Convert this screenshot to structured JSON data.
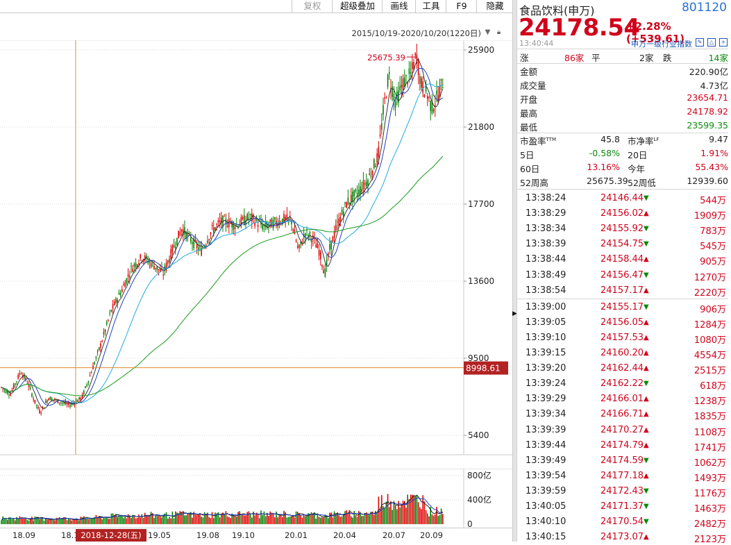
{
  "toolbar": {
    "buttons": [
      {
        "label": "复权",
        "disabled": true
      },
      {
        "label": "超级叠加"
      },
      {
        "label": "画线"
      },
      {
        "label": "工具"
      },
      {
        "label": "F9"
      },
      {
        "label": "隐藏"
      }
    ]
  },
  "range_label": "2015/10/19-2020/10/20(1220日)",
  "price_axis": [
    "25900",
    "21800",
    "17700",
    "13600",
    "9500",
    "5400"
  ],
  "cursor_price": "8998.61",
  "cursor_date": "2018-12-28(五)",
  "high_label": "25675.39",
  "volume_axis": [
    "800亿",
    "400亿",
    "0"
  ],
  "date_ticks": [
    "18.09",
    "18.1",
    "19.05",
    "19.08",
    "19.10",
    "20.01",
    "20.04",
    "20.07",
    "20.09"
  ],
  "chart_data": {
    "type": "candlestick",
    "date_range": [
      "2015/10/19",
      "2020/10/20"
    ],
    "ylim": [
      4000,
      26400
    ],
    "y_ticks": [
      25900,
      21800,
      17700,
      13600,
      9500,
      5400
    ],
    "max_marker": 25675.39,
    "crosshair": {
      "value": 8998.61,
      "date": "2018-12-28(五)"
    },
    "volume_ticks_yi": [
      800,
      400,
      0
    ]
  },
  "panel": {
    "name": "食品饮料(申万)",
    "code": "801120",
    "price": "24178.54",
    "change": "+2.28% (+539.61)",
    "time": "13:40:44",
    "index_link": "申万一级行业指数",
    "rise_label": "涨",
    "rise_count": "86家",
    "flat_label": "平",
    "flat_count": "2家",
    "fall_label": "跌",
    "fall_count": "14家",
    "stats": [
      {
        "label": "金额",
        "value": "220.90亿",
        "color": "#222222"
      },
      {
        "label": "成交量",
        "value": "4.73亿",
        "color": "#222222"
      },
      {
        "label": "开盘",
        "value": "23654.71",
        "color": "#d0021b"
      },
      {
        "label": "最高",
        "value": "24178.92",
        "color": "#d0021b"
      },
      {
        "label": "最低",
        "value": "23599.35",
        "color": "#0a8a0a"
      }
    ],
    "metrics": [
      {
        "l1": "市盈率",
        "s1": "TTM",
        "v1": "45.8",
        "c1": "#222222",
        "l2": "市净率",
        "s2": "LF",
        "v2": "9.47",
        "c2": "#222222"
      },
      {
        "l1": "5日",
        "s1": "",
        "v1": "-0.58%",
        "c1": "#0a8a0a",
        "l2": "20日",
        "s2": "",
        "v2": "1.91%",
        "c2": "#d0021b"
      },
      {
        "l1": "60日",
        "s1": "",
        "v1": "13.16%",
        "c1": "#d0021b",
        "l2": "今年",
        "s2": "",
        "v2": "55.43%",
        "c2": "#d0021b"
      },
      {
        "l1": "52周高",
        "s1": "",
        "v1": "25675.39",
        "c1": "#222222",
        "l2": "52周低",
        "s2": "",
        "v2": "12939.60",
        "c2": "#222222"
      }
    ],
    "ticks": [
      {
        "time": "13:38:24",
        "price": "24146.44",
        "dir": "down",
        "vol": "544万"
      },
      {
        "time": "13:38:29",
        "price": "24156.02",
        "dir": "up",
        "vol": "1909万"
      },
      {
        "time": "13:38:34",
        "price": "24155.92",
        "dir": "down",
        "vol": "783万"
      },
      {
        "time": "13:38:39",
        "price": "24154.75",
        "dir": "down",
        "vol": "545万"
      },
      {
        "time": "13:38:44",
        "price": "24158.44",
        "dir": "up",
        "vol": "905万"
      },
      {
        "time": "13:38:49",
        "price": "24156.47",
        "dir": "down",
        "vol": "1270万"
      },
      {
        "time": "13:38:54",
        "price": "24157.17",
        "dir": "up",
        "vol": "2220万"
      },
      {
        "time": "13:39:00",
        "price": "24155.17",
        "dir": "down",
        "vol": "906万"
      },
      {
        "time": "13:39:05",
        "price": "24156.05",
        "dir": "up",
        "vol": "1284万"
      },
      {
        "time": "13:39:10",
        "price": "24157.53",
        "dir": "up",
        "vol": "1080万"
      },
      {
        "time": "13:39:15",
        "price": "24160.20",
        "dir": "up",
        "vol": "4554万"
      },
      {
        "time": "13:39:20",
        "price": "24162.44",
        "dir": "up",
        "vol": "2515万"
      },
      {
        "time": "13:39:24",
        "price": "24162.22",
        "dir": "down",
        "vol": "618万"
      },
      {
        "time": "13:39:29",
        "price": "24166.01",
        "dir": "up",
        "vol": "1238万"
      },
      {
        "time": "13:39:34",
        "price": "24166.71",
        "dir": "up",
        "vol": "1835万"
      },
      {
        "time": "13:39:39",
        "price": "24170.27",
        "dir": "up",
        "vol": "1108万"
      },
      {
        "time": "13:39:44",
        "price": "24174.79",
        "dir": "up",
        "vol": "1741万"
      },
      {
        "time": "13:39:49",
        "price": "24174.59",
        "dir": "down",
        "vol": "1062万"
      },
      {
        "time": "13:39:54",
        "price": "24177.18",
        "dir": "up",
        "vol": "1493万"
      },
      {
        "time": "13:39:59",
        "price": "24172.43",
        "dir": "down",
        "vol": "1176万"
      },
      {
        "time": "13:40:05",
        "price": "24171.37",
        "dir": "down",
        "vol": "1463万"
      },
      {
        "time": "13:40:10",
        "price": "24170.54",
        "dir": "down",
        "vol": "2482万"
      },
      {
        "time": "13:40:15",
        "price": "24173.07",
        "dir": "up",
        "vol": "2123万"
      }
    ]
  }
}
